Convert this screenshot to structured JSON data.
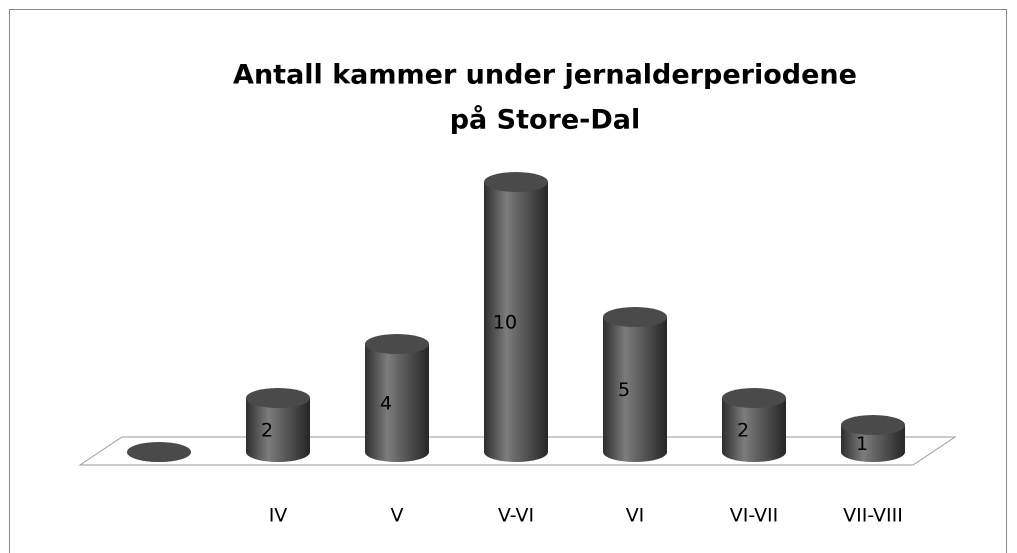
{
  "chart_data": {
    "type": "bar3d",
    "title": [
      "Antall kammer under jernalderperiodene",
      "på Store-Dal"
    ],
    "categories": [
      null,
      "IV",
      "V",
      "V-VI",
      "VI",
      "VI-VII",
      "VII-VIII"
    ],
    "values": [
      0,
      2,
      4,
      10,
      5,
      2,
      1
    ],
    "color": "#4a4a4a"
  }
}
